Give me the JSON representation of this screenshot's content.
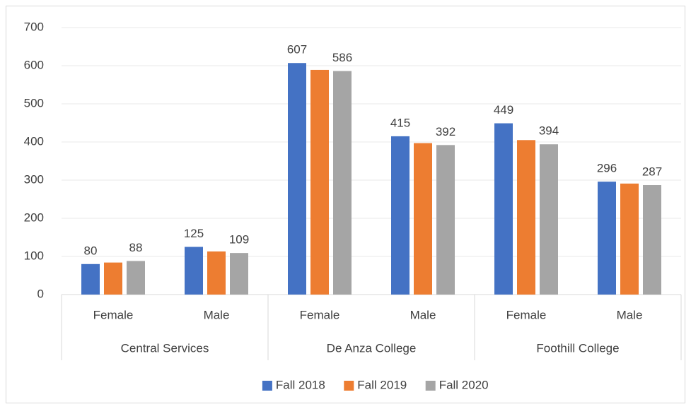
{
  "chart_data": {
    "type": "bar",
    "groups": [
      {
        "name": "Central Services",
        "categories": [
          "Female",
          "Male"
        ]
      },
      {
        "name": "De Anza College",
        "categories": [
          "Female",
          "Male"
        ]
      },
      {
        "name": "Foothill College",
        "categories": [
          "Female",
          "Male"
        ]
      }
    ],
    "series": [
      {
        "name": "Fall 2018",
        "color": "#4472c4",
        "values": [
          80,
          125,
          607,
          415,
          449,
          296
        ],
        "data_labels": true
      },
      {
        "name": "Fall 2019",
        "color": "#ed7d31",
        "values": [
          84,
          113,
          589,
          397,
          405,
          291
        ],
        "data_labels": false
      },
      {
        "name": "Fall 2020",
        "color": "#a5a5a5",
        "values": [
          88,
          109,
          586,
          392,
          394,
          287
        ],
        "data_labels": true
      }
    ],
    "ylim": [
      0,
      700
    ],
    "yticks": [
      0,
      100,
      200,
      300,
      400,
      500,
      600,
      700
    ],
    "grid": true,
    "legend": "bottom"
  }
}
